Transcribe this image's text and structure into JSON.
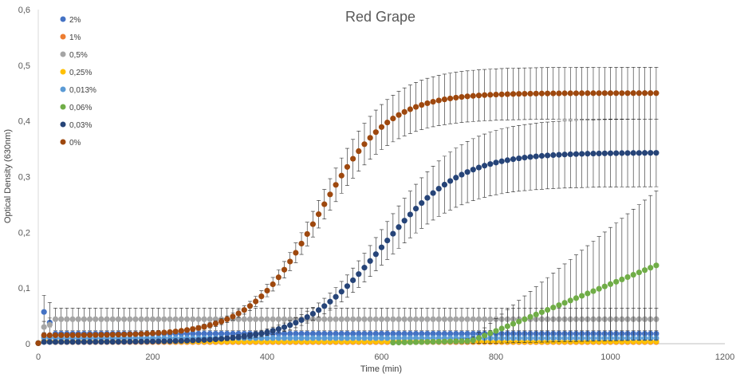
{
  "chart_data": {
    "type": "scatter",
    "title": "Red Grape",
    "xlabel": "Time (min)",
    "ylabel": "Optical Density (630nm)",
    "xlim": [
      0,
      1200
    ],
    "ylim": [
      0,
      0.6
    ],
    "x_ticks": [
      "0",
      "200",
      "400",
      "600",
      "800",
      "1000",
      "1200"
    ],
    "y_ticks": [
      "0",
      "0,1",
      "0,2",
      "0,3",
      "0,4",
      "0,5",
      "0,6"
    ],
    "legend_position": "top-left",
    "x_start": 0,
    "x_step": 10,
    "n_points": 109,
    "series": [
      {
        "name": "2%",
        "color": "#4472C4",
        "profile": "flat",
        "params": {
          "level": 0.018,
          "first": 0.057,
          "second": 0.038,
          "err": 0.004,
          "first_err": 0.03
        }
      },
      {
        "name": "1%",
        "color": "#ED7D31",
        "profile": "flat",
        "params": {
          "level": 0.003,
          "first": 0.005,
          "second": 0.004,
          "err": 0.002,
          "first_err": 0.003
        }
      },
      {
        "name": "0,5%",
        "color": "#A5A5A5",
        "profile": "flat",
        "params": {
          "level": 0.044,
          "first": 0.03,
          "second": 0.034,
          "err": 0.02,
          "first_err": 0.01
        }
      },
      {
        "name": "0,25%",
        "color": "#FFC000",
        "profile": "flat",
        "params": {
          "level": 0.004,
          "first": 0.004,
          "second": 0.004,
          "err": 0.002,
          "first_err": 0.002
        }
      },
      {
        "name": "0,013%",
        "color": "#5B9BD5",
        "profile": "flat",
        "params": {
          "level": 0.01,
          "first": 0.011,
          "second": 0.011,
          "err": 0.003,
          "first_err": 0.003
        }
      },
      {
        "name": "0,06%",
        "color": "#70AD47",
        "profile": "late",
        "params": {
          "start_x": 620,
          "onset": 750,
          "slope_per_min": 0.00042,
          "err_ratio": 0.95,
          "err_max": 0.14
        }
      },
      {
        "name": "0,03%",
        "color": "#264478",
        "profile": "logistic",
        "params": {
          "base": 0.003,
          "amp": 0.34,
          "x0": 600,
          "k": 0.0145,
          "err_ratio": 0.17,
          "err_max": 0.06
        }
      },
      {
        "name": "0%",
        "color": "#9E480E",
        "profile": "logistic",
        "params": {
          "base": 0.015,
          "amp": 0.435,
          "x0": 490,
          "k": 0.0165,
          "err_ratio": 0.1,
          "err_max": 0.048
        }
      }
    ]
  }
}
